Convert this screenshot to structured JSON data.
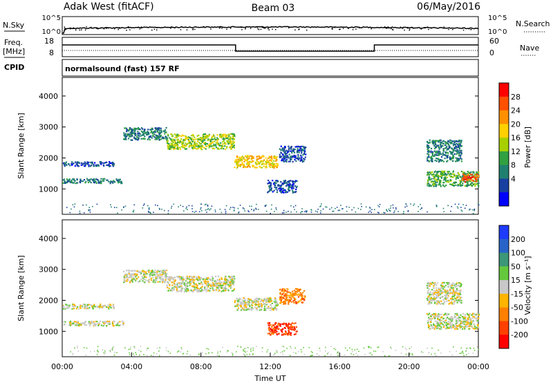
{
  "header": {
    "site": "Adak West (fitACF)",
    "beam": "Beam 03",
    "date": "06/May/2016"
  },
  "noise_panel": {
    "left_label": "N.Sky",
    "right_label": "N.Search",
    "y_ticks_left": [
      "10^5",
      "10^0"
    ],
    "y_ticks_right": [
      "10^5",
      "10^0"
    ]
  },
  "freq_panel": {
    "left_label": "Freq.",
    "left_unit": "[MHz]",
    "cpid_label": "CPID",
    "right_label": "Nave",
    "y_ticks_left": [
      "18",
      "8"
    ],
    "y_ticks_right": [
      "60",
      "0"
    ],
    "mode_text": "normalsound (fast) 157 RF"
  },
  "chart_data": [
    {
      "type": "heatmap",
      "name": "power",
      "ylabel": "Slant Range [km]",
      "ylim": [
        180,
        4600
      ],
      "yticks": [
        1000,
        2000,
        3000,
        4000
      ],
      "xlim": [
        0,
        24
      ],
      "colorbar": {
        "label": "Power [dB]",
        "ticks": [
          "28",
          "24",
          "20",
          "16",
          "12",
          "8",
          "4"
        ],
        "colors": [
          "#ff0000",
          "#ff5000",
          "#ff9000",
          "#ffd000",
          "#a8d000",
          "#30a040",
          "#208070",
          "#1840a0",
          "#0000ff"
        ]
      },
      "echo_bands": [
        {
          "t": [
            0.0,
            3.0
          ],
          "r": [
            1750,
            1900
          ],
          "level": 7
        },
        {
          "t": [
            0.0,
            3.5
          ],
          "r": [
            1200,
            1350
          ],
          "level": 6
        },
        {
          "t": [
            3.5,
            6.0
          ],
          "r": [
            2600,
            3000
          ],
          "level": 6
        },
        {
          "t": [
            6.0,
            9.9
          ],
          "r": [
            2300,
            2800
          ],
          "level": 4
        },
        {
          "t": [
            9.9,
            12.4
          ],
          "r": [
            1700,
            2100
          ],
          "level": 3
        },
        {
          "t": [
            12.5,
            14.0
          ],
          "r": [
            1900,
            2400
          ],
          "level": 7
        },
        {
          "t": [
            11.8,
            13.5
          ],
          "r": [
            900,
            1300
          ],
          "level": 7
        },
        {
          "t": [
            21.0,
            23.0
          ],
          "r": [
            1900,
            2600
          ],
          "level": 6
        },
        {
          "t": [
            21.0,
            24.0
          ],
          "r": [
            1100,
            1600
          ],
          "level": 5
        },
        {
          "t": [
            23.0,
            24.0
          ],
          "r": [
            1250,
            1500
          ],
          "level": 1
        }
      ]
    },
    {
      "type": "heatmap",
      "name": "velocity",
      "ylabel": "Slant Range [km]",
      "ylim": [
        180,
        4600
      ],
      "yticks": [
        1000,
        2000,
        3000,
        4000
      ],
      "xlim": [
        0,
        24
      ],
      "xlabel": "Time UT",
      "xticks": [
        "00:00",
        "04:00",
        "08:00",
        "12:00",
        "16:00",
        "20:00",
        "00:00"
      ],
      "colorbar": {
        "label": "Velocity [m s⁻¹]",
        "ticks": [
          "200",
          "100",
          "50",
          "15",
          "-15",
          "-50",
          "-100",
          "-200"
        ],
        "colors": [
          "#1e3cff",
          "#2864c8",
          "#3c9678",
          "#64c83c",
          "#c8c8c8",
          "#ffb400",
          "#ff8000",
          "#ff4000",
          "#ff0000"
        ]
      },
      "echo_bands": [
        {
          "t": [
            0.0,
            3.0
          ],
          "r": [
            1750,
            1900
          ],
          "level": 4
        },
        {
          "t": [
            0.0,
            3.5
          ],
          "r": [
            1200,
            1350
          ],
          "level": 4
        },
        {
          "t": [
            3.5,
            6.0
          ],
          "r": [
            2600,
            3000
          ],
          "level": 4
        },
        {
          "t": [
            6.0,
            9.9
          ],
          "r": [
            2300,
            2800
          ],
          "level": 4
        },
        {
          "t": [
            9.9,
            12.4
          ],
          "r": [
            1700,
            2100
          ],
          "level": 4
        },
        {
          "t": [
            12.5,
            14.0
          ],
          "r": [
            1900,
            2400
          ],
          "level": 6
        },
        {
          "t": [
            11.8,
            13.5
          ],
          "r": [
            900,
            1300
          ],
          "level": 7
        },
        {
          "t": [
            21.0,
            23.0
          ],
          "r": [
            1900,
            2600
          ],
          "level": 4
        },
        {
          "t": [
            21.0,
            24.0
          ],
          "r": [
            1100,
            1600
          ],
          "level": 4
        }
      ]
    }
  ]
}
